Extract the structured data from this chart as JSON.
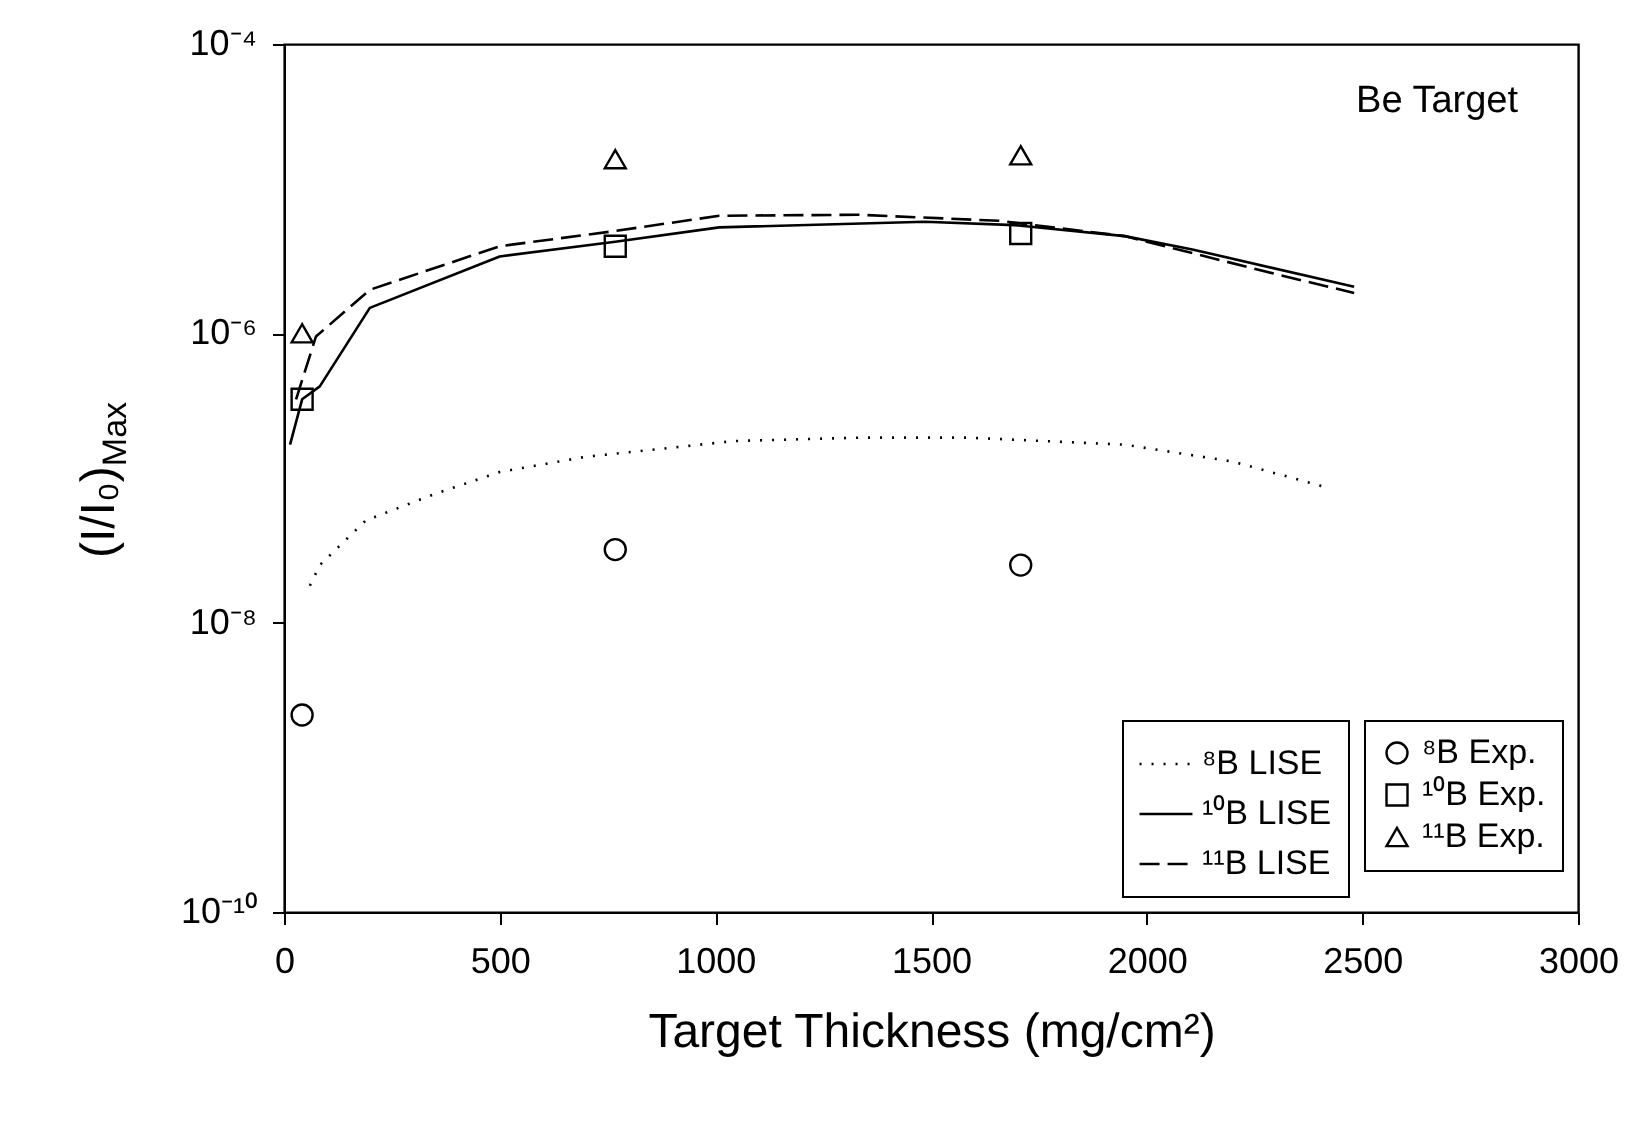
{
  "chart_data": {
    "type": "line",
    "xlabel": "Target Thickness (mg/cm²)",
    "ylabel": "(I/I₀)$_{Max}$",
    "annotations": [
      "Be Target"
    ],
    "log": "y",
    "grid": false,
    "legend": "bottom right",
    "xlim": [
      0,
      3000
    ],
    "xticks": [
      0,
      500,
      1000,
      1500,
      2000,
      2500,
      3000
    ],
    "ylim": [
      1e-10,
      0.0001
    ],
    "yticks": [
      {
        "value": 1e-10,
        "label": "10⁻¹⁰"
      },
      {
        "value": 1e-08,
        "label": "10⁻⁸"
      },
      {
        "value": 1e-06,
        "label": "10⁻⁶"
      },
      {
        "value": 0.0001,
        "label": "10⁻⁴"
      }
    ],
    "series": [
      {
        "name": "⁸B  LISE",
        "line_style": "dotted",
        "color": "#000000",
        "x": [
          60,
          83,
          190,
          352,
          500,
          699,
          1042,
          1333,
          1588,
          1949,
          2199,
          2412
        ],
        "values": [
          1.8e-08,
          2.5e-08,
          5.1e-08,
          7.8e-08,
          1.1e-07,
          1.4e-07,
          1.8e-07,
          1.9e-07,
          1.9e-07,
          1.7e-07,
          1.3e-07,
          8.7e-08
        ]
      },
      {
        "name": "¹⁰B LISE",
        "line_style": "solid",
        "color": "#000000",
        "x": [
          14,
          42,
          83,
          199,
          500,
          768,
          1009,
          1486,
          1694,
          1949,
          2106,
          2481
        ],
        "values": [
          1.7e-07,
          3.5e-07,
          4.3e-07,
          1.5e-06,
          3.4e-06,
          4.3e-06,
          5.4e-06,
          5.9e-06,
          5.6e-06,
          4.7e-06,
          3.8e-06,
          2.1e-06
        ]
      },
      {
        "name": "¹¹B LISE",
        "line_style": "dashed",
        "color": "#000000",
        "x": [
          28,
          74,
          199,
          500,
          768,
          1009,
          1333,
          1657,
          1949,
          2292,
          2481
        ],
        "values": [
          3.5e-07,
          9.5e-07,
          2e-06,
          4e-06,
          5.1e-06,
          6.5e-06,
          6.6e-06,
          6e-06,
          4.7e-06,
          2.6e-06,
          1.9e-06
        ]
      },
      {
        "name": "⁸B  Exp.",
        "type": "scatter",
        "marker": "circle",
        "color": "#000000",
        "x": [
          42,
          768,
          1708
        ],
        "values": [
          2.3e-09,
          3.2e-08,
          2.5e-08
        ]
      },
      {
        "name": "¹⁰B Exp.",
        "type": "scatter",
        "marker": "square",
        "color": "#000000",
        "x": [
          42,
          768,
          1708
        ],
        "values": [
          3.5e-07,
          4e-06,
          4.9e-06
        ]
      },
      {
        "name": "¹¹B Exp.",
        "type": "scatter",
        "marker": "triangle",
        "color": "#000000",
        "x": [
          42,
          768,
          1708
        ],
        "values": [
          1e-06,
          1.6e-05,
          1.7e-05
        ]
      }
    ]
  }
}
